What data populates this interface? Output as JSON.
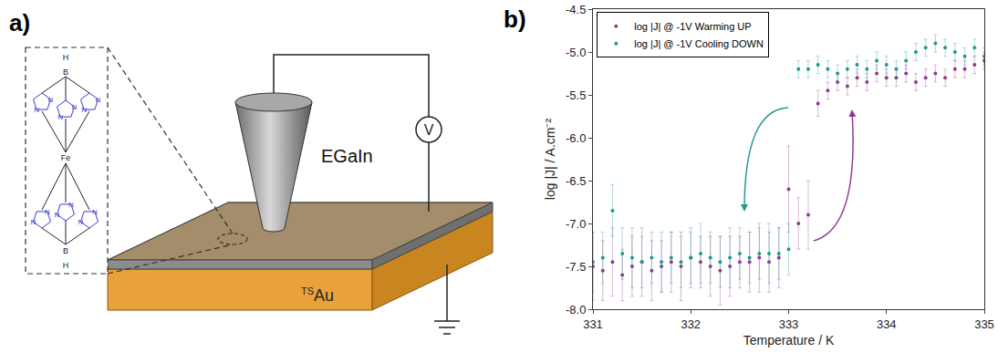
{
  "diagram": {
    "label": "a)",
    "electrode": "EGaIn",
    "meter": "V",
    "substrate": {
      "prefix": "TS",
      "text": "Au"
    },
    "molecule": {
      "hydrogen": "H",
      "boron": "B",
      "nitrogen": "N",
      "iron": "Fe"
    }
  },
  "chart_data": {
    "panel_label": "b)",
    "type": "scatter",
    "x_label": "Temperature / K",
    "y_label": "log |J| / A.cm⁻²",
    "x": [
      331.0,
      331.1,
      331.2,
      331.3,
      331.4,
      331.5,
      331.6,
      331.7,
      331.8,
      331.9,
      332.0,
      332.1,
      332.2,
      332.3,
      332.4,
      332.5,
      332.6,
      332.7,
      332.8,
      332.9,
      333.0,
      333.1,
      333.2,
      333.3,
      333.4,
      333.5,
      333.6,
      333.7,
      333.8,
      333.9,
      334.0,
      334.1,
      334.2,
      334.3,
      334.4,
      334.5,
      334.6,
      334.7,
      334.8,
      334.9,
      335.0
    ],
    "series": [
      {
        "name": "log |J| @ -1V Warming UP",
        "color": "#8e3b8e",
        "marker": "circle",
        "values": [
          -7.5,
          -7.55,
          -7.45,
          -7.6,
          -7.5,
          -7.45,
          -7.55,
          -7.5,
          -7.45,
          -7.5,
          -7.4,
          -7.45,
          -7.5,
          -7.55,
          -7.5,
          -7.45,
          -7.45,
          -7.4,
          -7.45,
          -7.4,
          -6.6,
          -7.0,
          -6.9,
          -5.6,
          -5.45,
          -5.35,
          -5.4,
          -5.3,
          -5.35,
          -5.25,
          -5.3,
          -5.3,
          -5.25,
          -5.35,
          -5.3,
          -5.25,
          -5.3,
          -5.2,
          -5.2,
          -5.15,
          -5.1
        ],
        "errors": [
          0.4,
          0.35,
          0.4,
          0.3,
          0.35,
          0.4,
          0.35,
          0.3,
          0.35,
          0.4,
          0.35,
          0.3,
          0.35,
          0.4,
          0.35,
          0.3,
          0.35,
          0.4,
          0.35,
          0.35,
          0.5,
          0.3,
          0.4,
          0.15,
          0.1,
          0.1,
          0.1,
          0.1,
          0.1,
          0.1,
          0.1,
          0.1,
          0.1,
          0.1,
          0.1,
          0.1,
          0.1,
          0.1,
          0.1,
          0.1,
          0.1
        ]
      },
      {
        "name": "log |J| @ -1V Cooling DOWN",
        "color": "#1f9a90",
        "marker": "circle",
        "values": [
          -7.45,
          -7.4,
          -6.85,
          -7.35,
          -7.4,
          -7.45,
          -7.4,
          -7.45,
          -7.4,
          -7.45,
          -7.4,
          -7.35,
          -7.4,
          -7.45,
          -7.4,
          -7.35,
          -7.4,
          -7.35,
          -7.35,
          -7.35,
          -7.3,
          -5.2,
          -5.2,
          -5.15,
          -5.2,
          -5.25,
          -5.2,
          -5.15,
          -5.2,
          -5.1,
          -5.15,
          -5.2,
          -5.1,
          -5.0,
          -4.95,
          -4.9,
          -4.95,
          -5.0,
          -5.05,
          -4.95,
          -5.05
        ],
        "errors": [
          0.35,
          0.3,
          0.3,
          0.3,
          0.35,
          0.3,
          0.3,
          0.35,
          0.3,
          0.3,
          0.3,
          0.35,
          0.3,
          0.3,
          0.35,
          0.3,
          0.3,
          0.3,
          0.35,
          0.3,
          0.3,
          0.1,
          0.1,
          0.1,
          0.1,
          0.1,
          0.1,
          0.1,
          0.1,
          0.1,
          0.1,
          0.1,
          0.1,
          0.1,
          0.1,
          0.1,
          0.1,
          0.1,
          0.1,
          0.1,
          0.1
        ]
      }
    ],
    "xlim": [
      331,
      335
    ],
    "xticks": [
      331,
      332,
      333,
      334,
      335
    ],
    "ylim": [
      -8,
      -4.5
    ],
    "yticks": [
      {
        "value": -8,
        "label": "-8.0"
      },
      -7.5,
      {
        "value": -7,
        "label": "-7.0"
      },
      -6.5,
      {
        "value": -6,
        "label": "-6.0"
      },
      -5.5,
      {
        "value": -5,
        "label": "-5.0"
      },
      -4.5
    ],
    "grid": false,
    "legend": "upper left"
  }
}
